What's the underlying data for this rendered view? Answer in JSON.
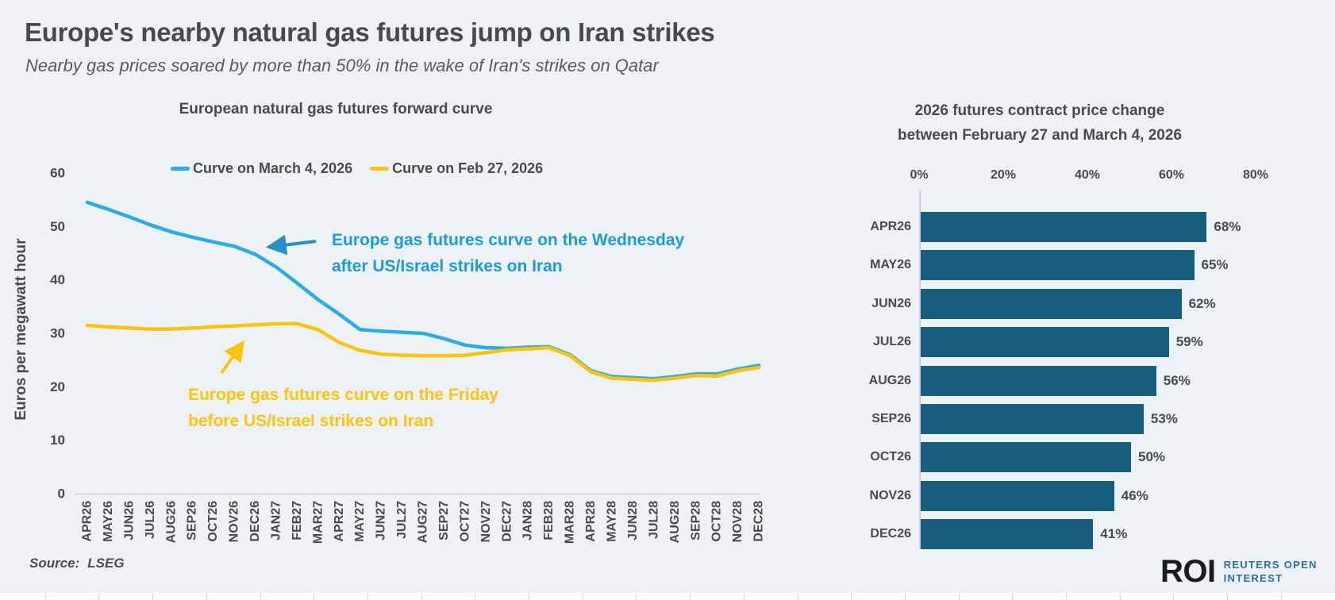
{
  "page": {
    "title": "Europe's nearby natural gas futures jump on Iran strikes",
    "subtitle": "Nearby gas prices soared by more than 50% in the wake of Iran's strikes on Qatar",
    "source_label": "Source:",
    "source_value": "LSEG",
    "logo": {
      "mark": "ROI",
      "line1": "REUTERS OPEN",
      "line2": "INTEREST"
    }
  },
  "colors": {
    "background": "#edf2f7",
    "title_text": "#4a4a4a",
    "axis_text": "#4a4a4a",
    "axis_line": "#c8d1da",
    "blue_line": "#2bace3",
    "blue_annotation": "#1a9cd8",
    "blue_arrow": "#2591c8",
    "yellow": "#ffc20e",
    "bar": "#185e7e",
    "roi_black": "#1c1c1c",
    "roi_blue": "#2d6da8",
    "strip_tick": "#d8d8d8"
  },
  "chart_data": [
    {
      "type": "line",
      "title": "European natural gas futures forward curve",
      "ylabel": "Euros per megawatt hour",
      "ylim": [
        0,
        60
      ],
      "yticks": [
        0,
        10,
        20,
        30,
        40,
        50,
        60
      ],
      "grid": false,
      "legend_position": "top",
      "categories": [
        "APR26",
        "MAY26",
        "JUN26",
        "JUL26",
        "AUG26",
        "SEP26",
        "OCT26",
        "NOV26",
        "DEC26",
        "JAN27",
        "FEB27",
        "MAR27",
        "APR27",
        "MAY27",
        "JUN27",
        "JUL27",
        "AUG27",
        "SEP27",
        "OCT27",
        "NOV27",
        "DEC27",
        "JAN28",
        "FEB28",
        "MAR28",
        "APR28",
        "MAY28",
        "JUN28",
        "JUL28",
        "AUG28",
        "SEP28",
        "OCT28",
        "NOV28",
        "DEC28"
      ],
      "series": [
        {
          "name": "Curve on March 4, 2026",
          "color": "#2bace3",
          "values": [
            54.5,
            53.2,
            51.8,
            50.3,
            49.0,
            48.0,
            47.1,
            46.3,
            44.8,
            42.4,
            39.4,
            36.3,
            33.6,
            30.7,
            30.4,
            30.2,
            30.0,
            29.0,
            27.8,
            27.3,
            27.2,
            27.4,
            27.5,
            26.0,
            23.0,
            21.9,
            21.7,
            21.5,
            21.9,
            22.4,
            22.4,
            23.3,
            24.0
          ]
        },
        {
          "name": "Curve on Feb 27, 2026",
          "color": "#ffc20e",
          "values": [
            31.5,
            31.2,
            31.0,
            30.8,
            30.8,
            31.0,
            31.2,
            31.4,
            31.6,
            31.8,
            31.8,
            30.7,
            28.3,
            26.8,
            26.1,
            25.9,
            25.8,
            25.8,
            25.9,
            26.4,
            26.9,
            27.1,
            27.3,
            25.8,
            22.8,
            21.6,
            21.4,
            21.2,
            21.6,
            22.1,
            22.0,
            23.0,
            23.6
          ]
        }
      ],
      "annotations": [
        {
          "id": "after-strikes",
          "color": "#1a9cd8",
          "lines": [
            "Europe gas futures curve on the Wednesday",
            "after US/Israel strikes on Iran"
          ]
        },
        {
          "id": "before-strikes",
          "color": "#ffc20e",
          "lines": [
            "Europe gas futures curve on the Friday",
            "before US/Israel strikes on Iran"
          ]
        }
      ]
    },
    {
      "type": "bar",
      "orientation": "horizontal",
      "title_lines": [
        "2026 futures contract price change",
        "between February 27 and March 4, 2026"
      ],
      "categories": [
        "APR26",
        "MAY26",
        "JUN26",
        "JUL26",
        "AUG26",
        "SEP26",
        "OCT26",
        "NOV26",
        "DEC26"
      ],
      "values": [
        68,
        65,
        62,
        59,
        56,
        53,
        50,
        46,
        41
      ],
      "value_labels": [
        "68%",
        "65%",
        "62%",
        "59%",
        "56%",
        "53%",
        "50%",
        "46%",
        "41%"
      ],
      "xlim": [
        0,
        80
      ],
      "xticks": [
        "0%",
        "20%",
        "40%",
        "60%",
        "80%"
      ],
      "axis_position": "top",
      "grid": false
    }
  ]
}
